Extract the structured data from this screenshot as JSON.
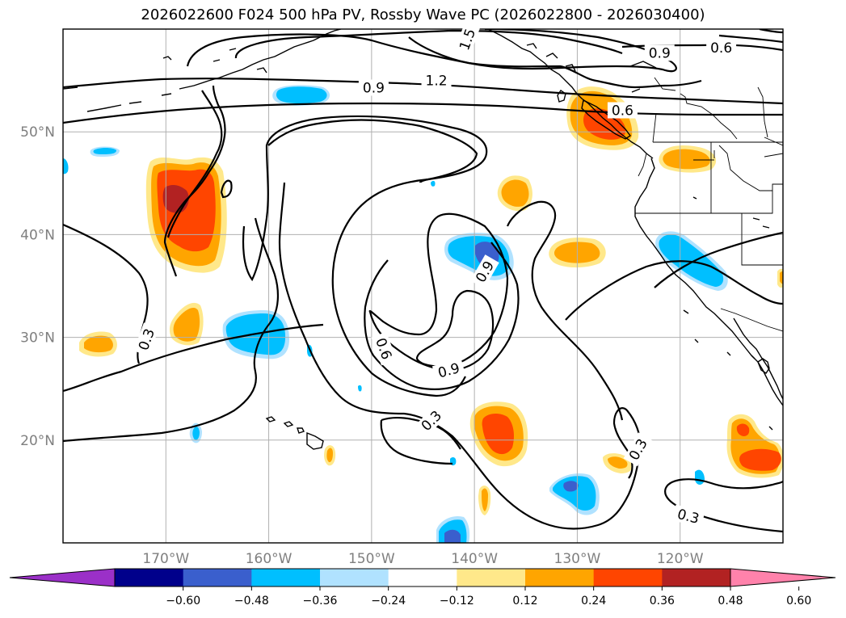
{
  "title": "2026022600 F024 500 hPa PV, Rossby Wave PC (2026022800 - 2026030400)",
  "map": {
    "projection": "cylindrical",
    "lon_range": [
      -180,
      -110
    ],
    "lat_range": [
      10,
      60
    ],
    "lat_ticks": [
      {
        "value": 50,
        "label": "50°N"
      },
      {
        "value": 40,
        "label": "40°N"
      },
      {
        "value": 30,
        "label": "30°N"
      },
      {
        "value": 20,
        "label": "20°N"
      }
    ],
    "lon_ticks": [
      {
        "value": -170,
        "label": "170°W"
      },
      {
        "value": -160,
        "label": "160°W"
      },
      {
        "value": -150,
        "label": "150°W"
      },
      {
        "value": -140,
        "label": "140°W"
      },
      {
        "value": -130,
        "label": "130°W"
      },
      {
        "value": -120,
        "label": "120°W"
      }
    ],
    "grid": true
  },
  "contour_labels": [
    {
      "text": "1.5",
      "lon": -140.7,
      "lat": 59.0,
      "angle": -70
    },
    {
      "text": "0.9",
      "lon": -122.0,
      "lat": 57.7,
      "angle": 0
    },
    {
      "text": "0.6",
      "lon": -116.0,
      "lat": 58.2,
      "angle": 0
    },
    {
      "text": "1.2",
      "lon": -143.7,
      "lat": 55.0,
      "angle": 0
    },
    {
      "text": "0.9",
      "lon": -149.8,
      "lat": 54.3,
      "angle": 0
    },
    {
      "text": "0.6",
      "lon": -125.6,
      "lat": 52.1,
      "angle": 0
    },
    {
      "text": "0.3",
      "lon": -171.9,
      "lat": 29.8,
      "angle": -70
    },
    {
      "text": "0.9",
      "lon": -139.0,
      "lat": 36.4,
      "angle": -60
    },
    {
      "text": "0.6",
      "lon": -148.8,
      "lat": 28.9,
      "angle": 70
    },
    {
      "text": "0.9",
      "lon": -142.5,
      "lat": 26.8,
      "angle": -15
    },
    {
      "text": "0.3",
      "lon": -144.2,
      "lat": 21.9,
      "angle": -45
    },
    {
      "text": "0.3",
      "lon": -124.1,
      "lat": 19.1,
      "angle": -60
    },
    {
      "text": "0.3",
      "lon": -119.2,
      "lat": 12.6,
      "angle": 15
    }
  ],
  "colorbar": {
    "ticks": [
      "−0.60",
      "−0.48",
      "−0.36",
      "−0.24",
      "−0.12",
      "0.12",
      "0.24",
      "0.36",
      "0.48",
      "0.60"
    ],
    "segments": [
      {
        "color": "#9b30c8"
      },
      {
        "color": "#00008b"
      },
      {
        "color": "#3a5fcd"
      },
      {
        "color": "#00bfff"
      },
      {
        "color": "#b0e2ff"
      },
      {
        "color": "#ffffff"
      },
      {
        "color": "#ffe88a"
      },
      {
        "color": "#ffa500"
      },
      {
        "color": "#ff4500"
      },
      {
        "color": "#b22222"
      },
      {
        "color": "#ff82ab"
      }
    ]
  },
  "colors": {
    "neg_dark": "#3a5fcd",
    "neg_mid": "#00bfff",
    "neg_light": "#b0e2ff",
    "pos_light": "#ffe88a",
    "pos_mid": "#ffa500",
    "pos_high": "#ff4500",
    "pos_max": "#b22222"
  }
}
